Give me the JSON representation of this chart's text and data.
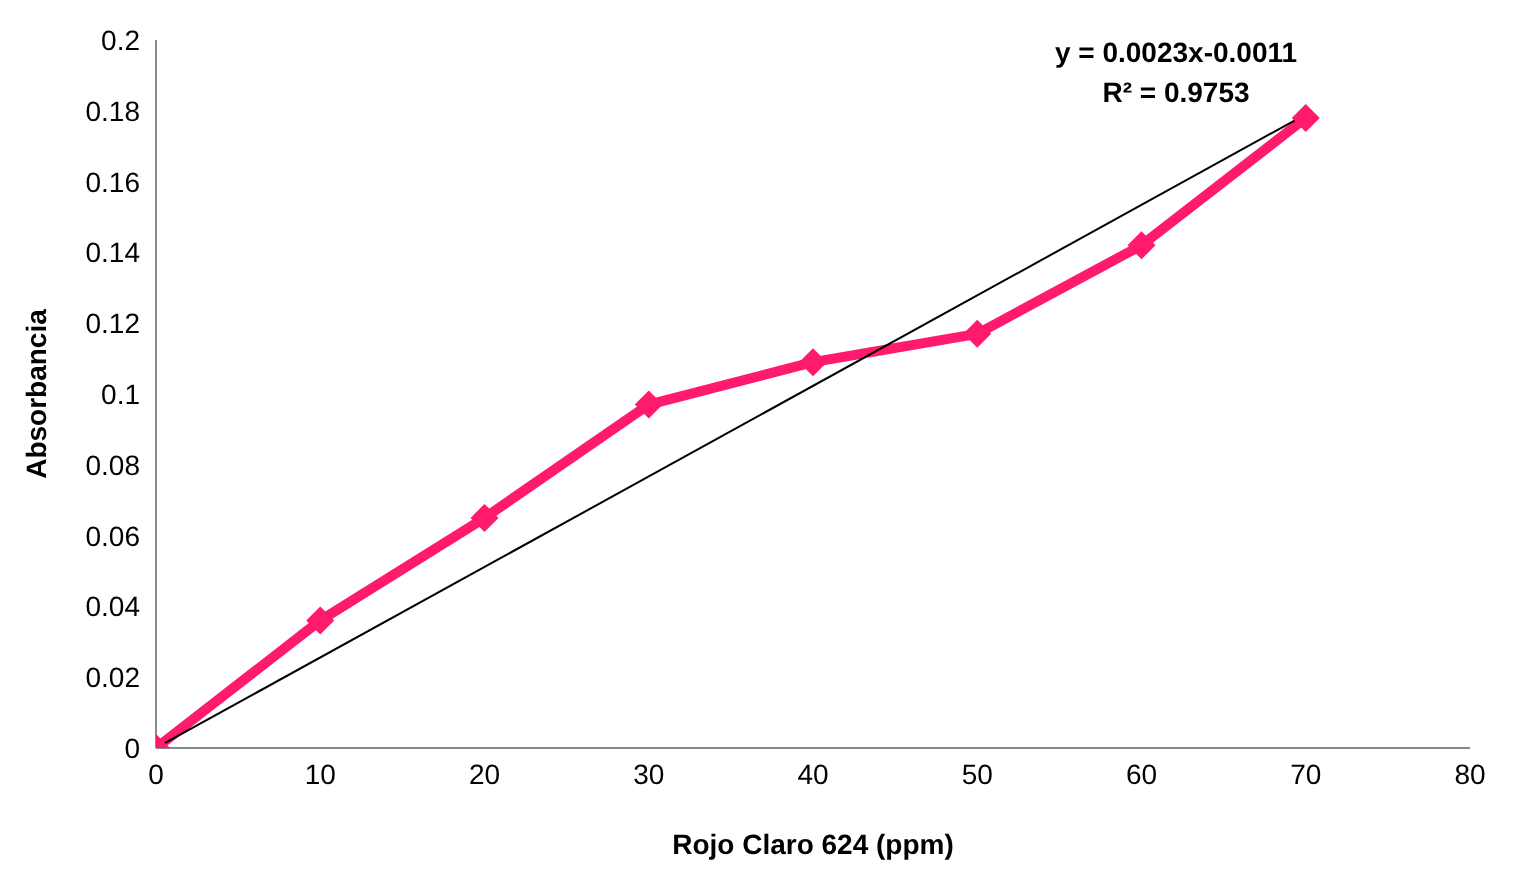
{
  "chart_data": {
    "type": "line",
    "xlabel": "Rojo Claro 624 (ppm)",
    "ylabel": "Absorbancia",
    "annotations": [
      "y = 0.0023x-0.0011",
      "R² = 0.9753"
    ],
    "xlim": [
      0,
      80
    ],
    "xticks": [
      0,
      10,
      20,
      30,
      40,
      50,
      60,
      70,
      80
    ],
    "ylim": [
      0,
      0.2
    ],
    "yticks": [
      0,
      0.02,
      0.04,
      0.06,
      0.08,
      0.1,
      0.12,
      0.14,
      0.16,
      0.18,
      0.2
    ],
    "grid": false,
    "series": [
      {
        "color": "#ff1a6e",
        "marker": "diamond",
        "line_style": "solid",
        "x": [
          0,
          10,
          20,
          30,
          40,
          50,
          60,
          70
        ],
        "values": [
          0,
          0.036,
          0.065,
          0.097,
          0.109,
          0.117,
          0.142,
          0.178
        ]
      },
      {
        "color": "#000000",
        "marker": "none",
        "line_style": "solid",
        "x": [
          0,
          70
        ],
        "values": [
          0,
          0.179
        ]
      }
    ]
  }
}
